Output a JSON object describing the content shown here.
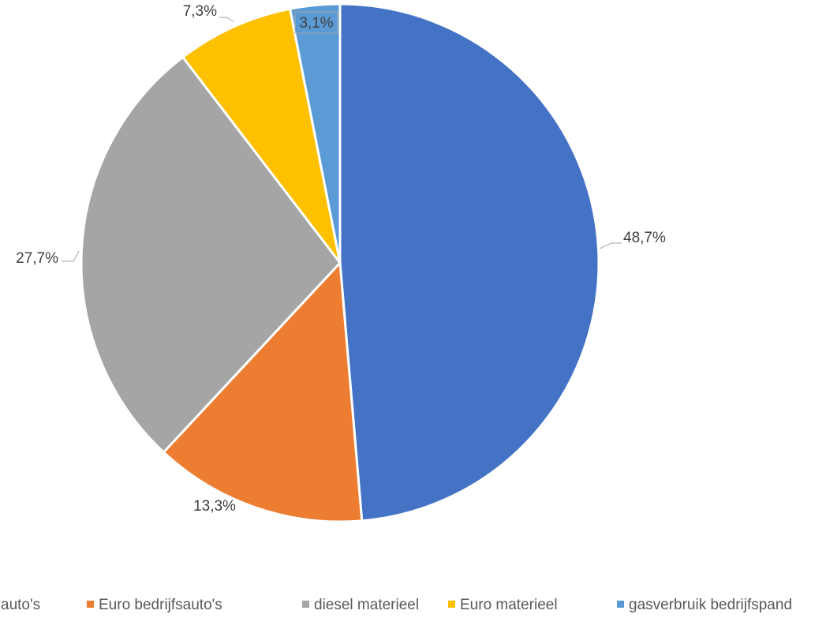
{
  "chart_data": {
    "type": "pie",
    "title": "",
    "slices": [
      {
        "label": "diesel bedrijfsauto's",
        "legend_text": "auto's",
        "value": 48.7,
        "value_label": "48,7%",
        "color": "#4472C4"
      },
      {
        "label": "Euro bedrijfsauto's",
        "legend_text": "Euro bedrijfsauto's",
        "value": 13.3,
        "value_label": "13,3%",
        "color": "#ED7D31"
      },
      {
        "label": "diesel materieel",
        "legend_text": "diesel materieel",
        "value": 27.7,
        "value_label": "27,7%",
        "color": "#A5A5A5"
      },
      {
        "label": "Euro materieel",
        "legend_text": "Euro materieel",
        "value": 7.3,
        "value_label": "7,3%",
        "color": "#FFC000"
      },
      {
        "label": "gasverbruik bedrijfspand",
        "legend_text": "gasverbruik bedrijfspand",
        "value": 3.1,
        "value_label": "3,1%",
        "color": "#5B9BD5"
      }
    ],
    "legend_position": "bottom",
    "data_labels": true
  }
}
